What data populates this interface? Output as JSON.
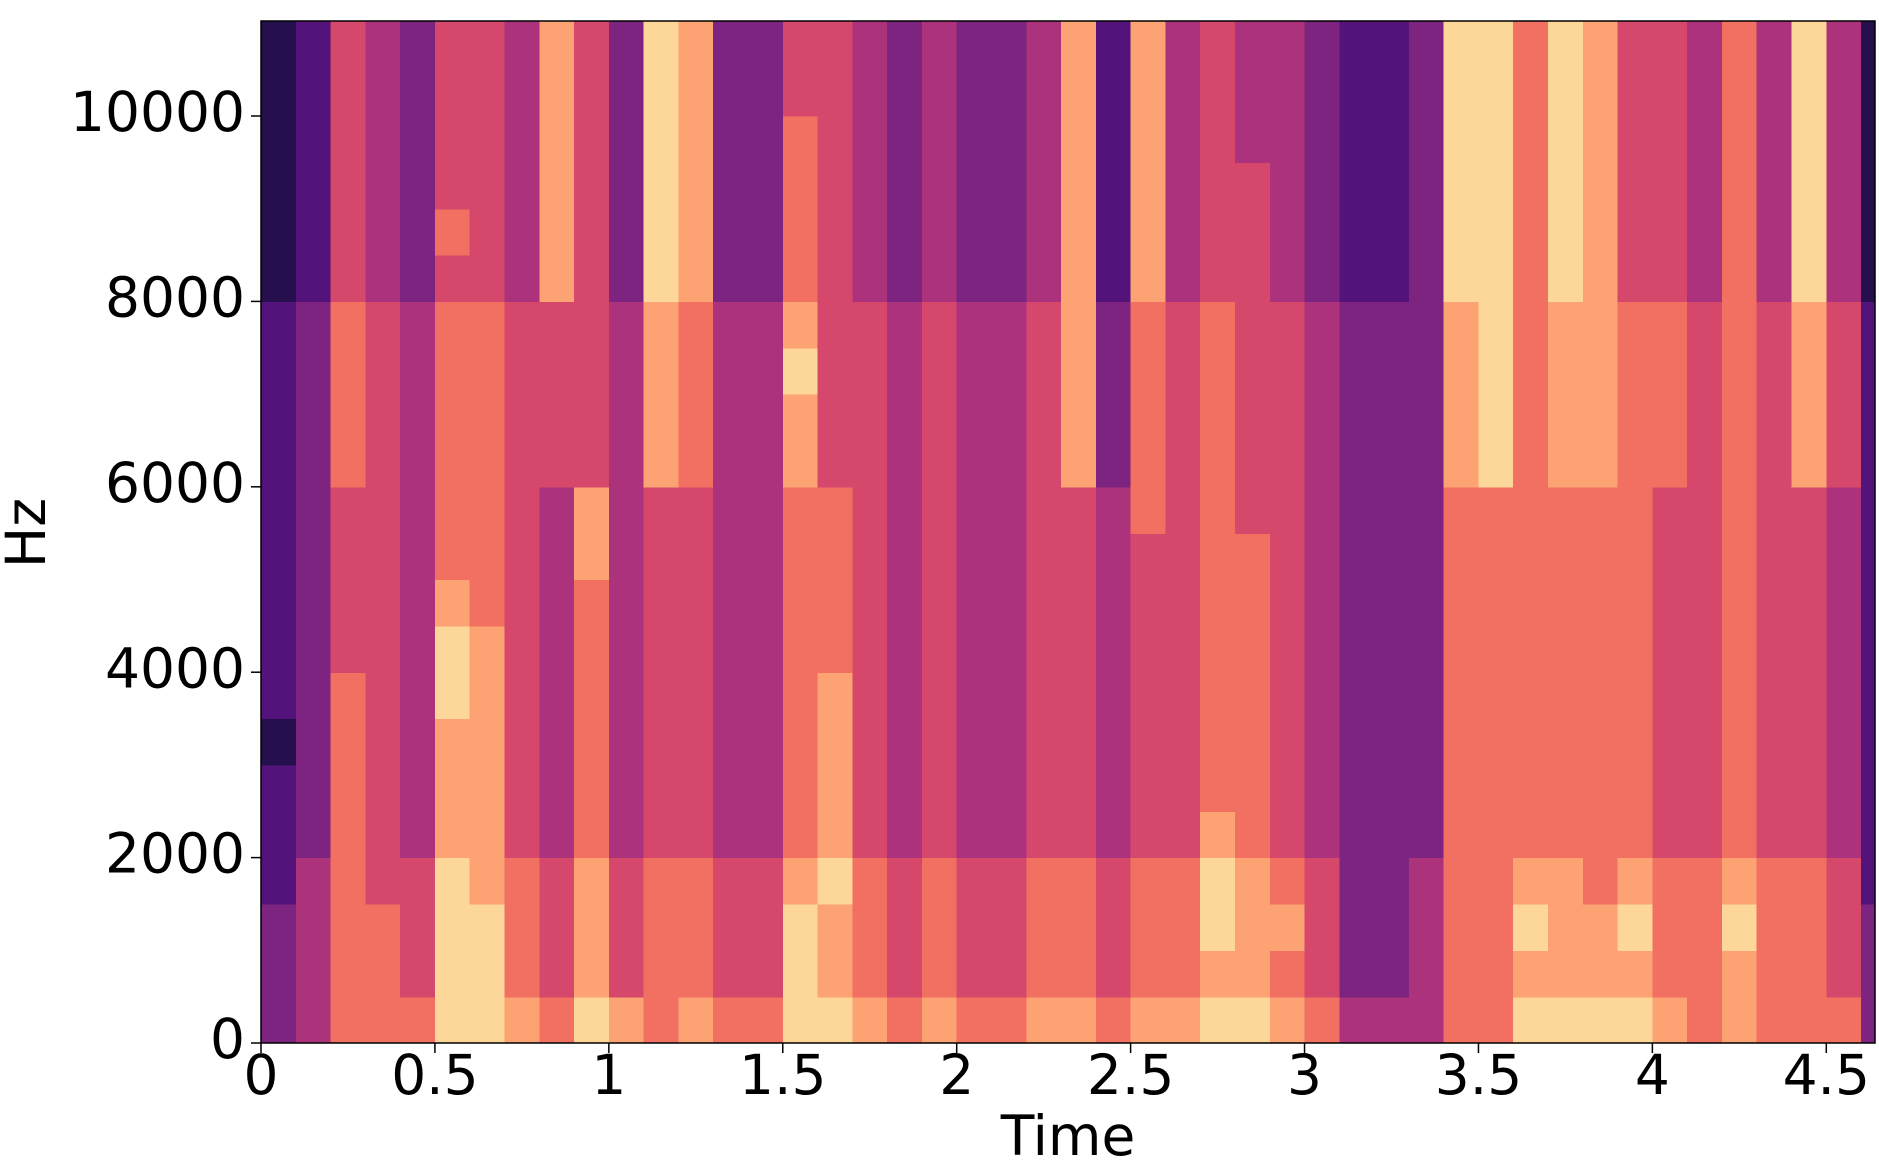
{
  "chart_data": {
    "type": "heatmap",
    "colormap": "magma",
    "xlabel": "Time",
    "ylabel": "Hz",
    "xlim": [
      0,
      4.64
    ],
    "ylim": [
      0,
      11025
    ],
    "xticks": [
      0,
      0.5,
      1,
      1.5,
      2,
      2.5,
      3,
      3.5,
      4,
      4.5
    ],
    "yticks": [
      0,
      2000,
      4000,
      6000,
      8000,
      10000
    ],
    "xbins": [
      0,
      0.1,
      0.2,
      0.3,
      0.4,
      0.5,
      0.6,
      0.7,
      0.8,
      0.9,
      1,
      1.1,
      1.2,
      1.3,
      1.4,
      1.5,
      1.6,
      1.7,
      1.8,
      1.9,
      2,
      2.1,
      2.2,
      2.3,
      2.4,
      2.5,
      2.6,
      2.7,
      2.8,
      2.9,
      3,
      3.1,
      3.2,
      3.3,
      3.4,
      3.5,
      3.6,
      3.7,
      3.8,
      3.9,
      4,
      4.1,
      4.2,
      4.3,
      4.4,
      4.5,
      4.6,
      4.64
    ],
    "ybins": [
      0,
      500,
      1000,
      1500,
      2000,
      2500,
      3000,
      3500,
      4000,
      4500,
      5000,
      5500,
      6000,
      6500,
      7000,
      7500,
      8000,
      8500,
      9000,
      9500,
      10000,
      10500,
      11025
    ],
    "z": [
      [
        3,
        4,
        6,
        6,
        6,
        8,
        8,
        7,
        6,
        8,
        7,
        6,
        7,
        6,
        6,
        8,
        8,
        7,
        6,
        7,
        6,
        6,
        7,
        7,
        6,
        7,
        7,
        8,
        8,
        7,
        6,
        4,
        4,
        4,
        6,
        6,
        8,
        8,
        8,
        8,
        7,
        6,
        7,
        6,
        6,
        6,
        3
      ],
      [
        3,
        4,
        6,
        6,
        5,
        8,
        8,
        6,
        5,
        7,
        5,
        6,
        6,
        5,
        5,
        8,
        7,
        6,
        5,
        6,
        5,
        5,
        6,
        6,
        5,
        6,
        6,
        7,
        7,
        6,
        5,
        3,
        3,
        4,
        6,
        6,
        7,
        7,
        7,
        7,
        6,
        6,
        7,
        6,
        6,
        5,
        3
      ],
      [
        3,
        4,
        6,
        6,
        5,
        8,
        8,
        6,
        5,
        7,
        5,
        6,
        6,
        5,
        5,
        8,
        7,
        6,
        5,
        6,
        5,
        5,
        6,
        6,
        5,
        6,
        6,
        8,
        7,
        7,
        5,
        3,
        3,
        4,
        6,
        6,
        8,
        7,
        7,
        8,
        6,
        6,
        8,
        6,
        6,
        5,
        3
      ],
      [
        2,
        4,
        6,
        5,
        5,
        8,
        7,
        6,
        5,
        7,
        5,
        6,
        6,
        5,
        5,
        7,
        8,
        6,
        5,
        6,
        5,
        5,
        6,
        6,
        5,
        6,
        6,
        8,
        7,
        6,
        5,
        3,
        3,
        4,
        6,
        6,
        7,
        7,
        6,
        7,
        6,
        6,
        7,
        6,
        6,
        5,
        2
      ],
      [
        2,
        3,
        6,
        5,
        4,
        7,
        7,
        5,
        4,
        6,
        4,
        5,
        5,
        4,
        4,
        6,
        7,
        5,
        4,
        5,
        4,
        4,
        5,
        5,
        4,
        5,
        5,
        7,
        6,
        5,
        4,
        3,
        3,
        3,
        6,
        6,
        6,
        6,
        6,
        6,
        5,
        5,
        6,
        5,
        5,
        4,
        2
      ],
      [
        2,
        3,
        6,
        5,
        4,
        7,
        7,
        5,
        4,
        6,
        4,
        5,
        5,
        4,
        4,
        6,
        7,
        5,
        4,
        5,
        4,
        4,
        5,
        5,
        4,
        5,
        5,
        6,
        6,
        5,
        4,
        3,
        3,
        3,
        6,
        6,
        6,
        6,
        6,
        6,
        5,
        5,
        6,
        5,
        5,
        4,
        2
      ],
      [
        1,
        3,
        6,
        5,
        4,
        7,
        7,
        5,
        4,
        6,
        4,
        5,
        5,
        4,
        4,
        6,
        7,
        5,
        4,
        5,
        4,
        4,
        5,
        5,
        4,
        5,
        5,
        6,
        6,
        5,
        4,
        3,
        3,
        3,
        6,
        6,
        6,
        6,
        6,
        6,
        5,
        5,
        6,
        5,
        5,
        4,
        2
      ],
      [
        2,
        3,
        6,
        5,
        4,
        8,
        7,
        5,
        4,
        6,
        4,
        5,
        5,
        4,
        4,
        6,
        7,
        5,
        4,
        5,
        4,
        4,
        5,
        5,
        4,
        5,
        5,
        6,
        6,
        5,
        4,
        3,
        3,
        3,
        6,
        6,
        6,
        6,
        6,
        6,
        5,
        5,
        6,
        5,
        5,
        4,
        2
      ],
      [
        2,
        3,
        5,
        5,
        4,
        8,
        7,
        5,
        4,
        6,
        4,
        5,
        5,
        4,
        4,
        6,
        6,
        5,
        4,
        5,
        4,
        4,
        5,
        5,
        4,
        5,
        5,
        6,
        6,
        5,
        4,
        3,
        3,
        3,
        6,
        6,
        6,
        6,
        6,
        6,
        5,
        5,
        6,
        5,
        5,
        4,
        2
      ],
      [
        2,
        3,
        5,
        5,
        4,
        7,
        6,
        5,
        4,
        6,
        4,
        5,
        5,
        4,
        4,
        6,
        6,
        5,
        4,
        5,
        4,
        4,
        5,
        5,
        4,
        5,
        5,
        6,
        6,
        5,
        4,
        3,
        3,
        3,
        6,
        6,
        6,
        6,
        6,
        6,
        5,
        5,
        6,
        5,
        5,
        4,
        2
      ],
      [
        2,
        3,
        5,
        5,
        4,
        6,
        6,
        5,
        4,
        7,
        4,
        5,
        5,
        4,
        4,
        6,
        6,
        5,
        4,
        5,
        4,
        4,
        5,
        5,
        4,
        5,
        5,
        6,
        6,
        5,
        4,
        3,
        3,
        3,
        6,
        6,
        6,
        6,
        6,
        6,
        5,
        5,
        6,
        5,
        5,
        4,
        2
      ],
      [
        2,
        3,
        5,
        5,
        4,
        6,
        6,
        5,
        4,
        7,
        4,
        5,
        5,
        4,
        4,
        6,
        6,
        5,
        4,
        5,
        4,
        4,
        5,
        5,
        4,
        6,
        5,
        6,
        5,
        5,
        4,
        3,
        3,
        3,
        6,
        6,
        6,
        6,
        6,
        6,
        5,
        5,
        6,
        5,
        5,
        4,
        2
      ],
      [
        2,
        3,
        6,
        5,
        4,
        6,
        6,
        5,
        5,
        5,
        4,
        7,
        6,
        4,
        4,
        7,
        5,
        5,
        4,
        5,
        4,
        4,
        5,
        7,
        3,
        6,
        5,
        6,
        5,
        5,
        4,
        3,
        3,
        3,
        7,
        8,
        6,
        7,
        7,
        6,
        6,
        5,
        6,
        5,
        7,
        5,
        2
      ],
      [
        2,
        3,
        6,
        5,
        4,
        6,
        6,
        5,
        5,
        5,
        4,
        7,
        6,
        4,
        4,
        7,
        5,
        5,
        4,
        5,
        4,
        4,
        5,
        7,
        3,
        6,
        5,
        6,
        5,
        5,
        4,
        3,
        3,
        3,
        7,
        8,
        6,
        7,
        7,
        6,
        6,
        5,
        6,
        5,
        7,
        5,
        2
      ],
      [
        2,
        3,
        6,
        5,
        4,
        6,
        6,
        5,
        5,
        5,
        4,
        7,
        6,
        4,
        4,
        8,
        5,
        5,
        4,
        5,
        4,
        4,
        5,
        7,
        3,
        6,
        5,
        6,
        5,
        5,
        4,
        3,
        3,
        3,
        7,
        8,
        6,
        7,
        7,
        6,
        6,
        5,
        6,
        5,
        7,
        5,
        2
      ],
      [
        2,
        3,
        6,
        5,
        4,
        6,
        6,
        5,
        5,
        5,
        4,
        7,
        6,
        4,
        4,
        7,
        5,
        5,
        4,
        5,
        4,
        4,
        5,
        7,
        3,
        6,
        5,
        6,
        5,
        5,
        4,
        3,
        3,
        3,
        7,
        8,
        6,
        7,
        7,
        6,
        6,
        5,
        6,
        5,
        7,
        5,
        2
      ],
      [
        1,
        2,
        5,
        4,
        3,
        5,
        5,
        4,
        7,
        5,
        3,
        8,
        7,
        3,
        3,
        6,
        5,
        4,
        3,
        4,
        3,
        3,
        4,
        7,
        2,
        7,
        4,
        5,
        5,
        4,
        3,
        2,
        2,
        3,
        8,
        8,
        6,
        8,
        7,
        5,
        5,
        4,
        6,
        4,
        8,
        4,
        1
      ],
      [
        1,
        2,
        5,
        4,
        3,
        6,
        5,
        4,
        7,
        5,
        3,
        8,
        7,
        3,
        3,
        6,
        5,
        4,
        3,
        4,
        3,
        3,
        4,
        7,
        2,
        7,
        4,
        5,
        5,
        4,
        3,
        2,
        2,
        3,
        8,
        8,
        6,
        8,
        7,
        5,
        5,
        4,
        6,
        4,
        8,
        4,
        1
      ],
      [
        1,
        2,
        5,
        4,
        3,
        5,
        5,
        4,
        7,
        5,
        3,
        8,
        7,
        3,
        3,
        6,
        5,
        4,
        3,
        4,
        3,
        3,
        4,
        7,
        2,
        7,
        4,
        5,
        5,
        4,
        3,
        2,
        2,
        3,
        8,
        8,
        6,
        8,
        7,
        5,
        5,
        4,
        6,
        4,
        8,
        4,
        1
      ],
      [
        1,
        2,
        5,
        4,
        3,
        5,
        5,
        4,
        7,
        5,
        3,
        8,
        7,
        3,
        3,
        6,
        5,
        4,
        3,
        4,
        3,
        3,
        4,
        7,
        2,
        7,
        4,
        5,
        4,
        4,
        3,
        2,
        2,
        3,
        8,
        8,
        6,
        8,
        7,
        5,
        5,
        4,
        6,
        4,
        8,
        4,
        1
      ],
      [
        1,
        2,
        5,
        4,
        3,
        5,
        5,
        4,
        7,
        5,
        3,
        8,
        7,
        3,
        3,
        5,
        5,
        4,
        3,
        4,
        3,
        3,
        4,
        7,
        2,
        7,
        4,
        5,
        4,
        4,
        3,
        2,
        2,
        3,
        8,
        8,
        6,
        8,
        7,
        5,
        5,
        4,
        6,
        4,
        8,
        4,
        1
      ],
      [
        1,
        2,
        5,
        4,
        3,
        5,
        5,
        4,
        7,
        5,
        3,
        8,
        7,
        3,
        3,
        5,
        5,
        4,
        3,
        4,
        3,
        3,
        4,
        7,
        2,
        7,
        4,
        5,
        4,
        4,
        3,
        2,
        2,
        3,
        8,
        8,
        6,
        8,
        7,
        5,
        5,
        4,
        6,
        4,
        8,
        4,
        1
      ]
    ]
  }
}
